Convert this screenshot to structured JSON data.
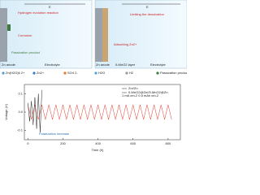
{
  "diagram": {
    "left_panel": {
      "field": "E",
      "hydrogen": "Hydrogen evolution reaction",
      "corrosion": "Corrosion",
      "passivation": "Passivation product",
      "anode": "Zn anode",
      "electrolyte": "Electrolyte"
    },
    "right_panel": {
      "field": "E",
      "desolvation": "Limiting the desolvation",
      "adsorbing": "Adsorbing Zn2+",
      "anode": "Zn anode",
      "layer": "δ-MnO2 layer",
      "electrolyte": "Electrolyte"
    },
    "legend": [
      "Zn(H2O)6 2+",
      "Zn2+",
      "SO4 2-",
      "H2O",
      "H2",
      "Passivation product"
    ]
  },
  "chart_data": {
    "type": "line",
    "x_label": "Time (h)",
    "y_label": "Voltage (V)",
    "annotation": "Polarization increase",
    "condition": "1 mA cm-2  0.5 mAh cm-2",
    "xlim": [
      -20,
      870
    ],
    "xticks": [
      0,
      200,
      400,
      600,
      800
    ],
    "ylim": [
      -0.15,
      0.15
    ],
    "yticks": [
      -0.1,
      {
        "value": 0,
        "label": "0.0"
      },
      0.1
    ],
    "series": [
      {
        "name": "Zn//Zn",
        "color": "#222222",
        "x": [
          0,
          10,
          20,
          30,
          40,
          50,
          60,
          70,
          80
        ],
        "values": [
          0.05,
          -0.05,
          0.06,
          -0.07,
          0.08,
          -0.09,
          0.1,
          -0.11,
          0.12
        ]
      },
      {
        "name": "δ-MnO2@Zn//δ-MnO2@Zn",
        "color": "#e8382c",
        "x": [
          0,
          20,
          40,
          60,
          80,
          100,
          120,
          140,
          160,
          180,
          200,
          220,
          240,
          260,
          280,
          300,
          320,
          340,
          360,
          380,
          400,
          420,
          440,
          460,
          480,
          500,
          520,
          540,
          560,
          580,
          600,
          620,
          640,
          660,
          680,
          700,
          720,
          740,
          760,
          780,
          800,
          820
        ],
        "values": [
          0.04,
          -0.04,
          0.04,
          -0.04,
          0.04,
          -0.04,
          0.04,
          -0.04,
          0.04,
          -0.04,
          0.04,
          -0.04,
          0.04,
          -0.04,
          0.04,
          -0.04,
          0.04,
          -0.04,
          0.04,
          -0.04,
          0.04,
          -0.04,
          0.04,
          -0.04,
          0.04,
          -0.04,
          0.04,
          -0.04,
          0.04,
          -0.04,
          0.04,
          -0.04,
          0.04,
          -0.04,
          0.04,
          -0.04,
          0.04,
          -0.04,
          0.04,
          -0.04,
          0.04,
          -0.04
        ]
      }
    ]
  }
}
